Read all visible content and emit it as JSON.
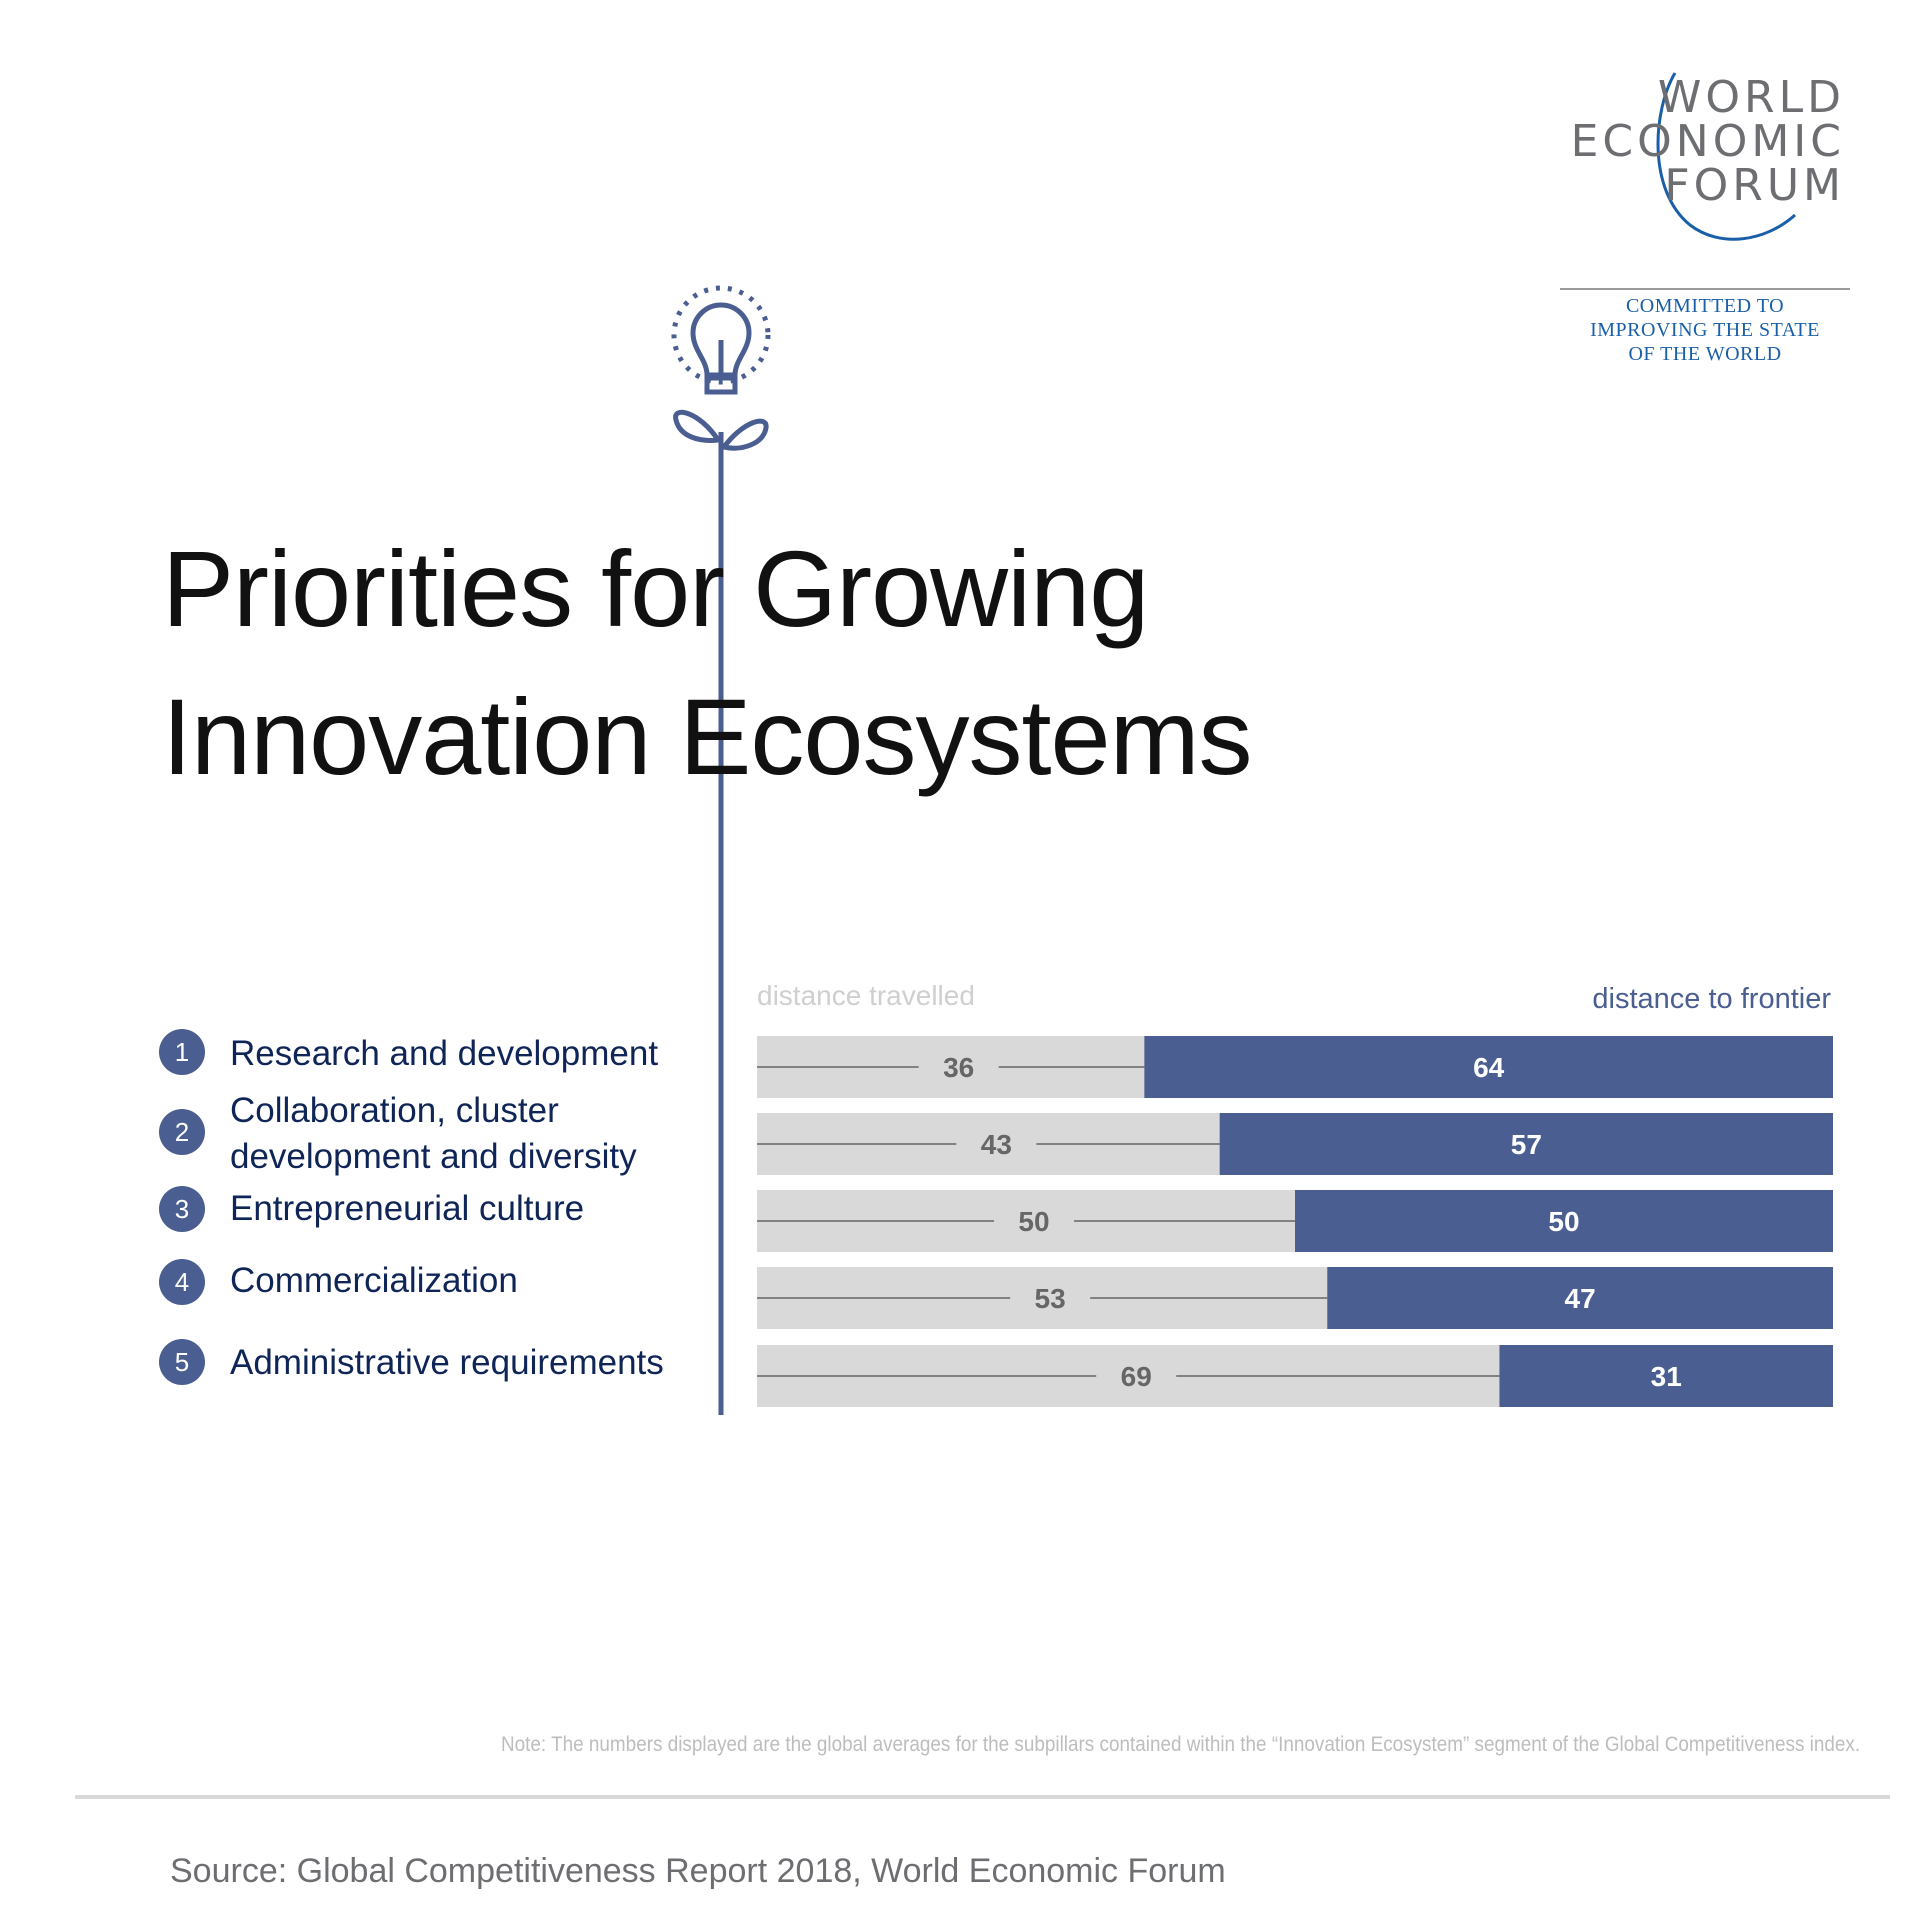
{
  "logo": {
    "lines": [
      "WORLD",
      "ECONOMIC",
      "FORUM"
    ],
    "tagline": [
      "COMMITTED TO",
      "IMPROVING THE STATE",
      "OF THE WORLD"
    ]
  },
  "title": [
    "Priorities for Growing",
    "Innovation Ecosystems"
  ],
  "legend": {
    "left": "distance travelled",
    "right": "distance to frontier"
  },
  "chart_data": {
    "type": "bar",
    "stacked": true,
    "orientation": "horizontal",
    "categories": [
      "Research and development",
      "Collaboration, cluster development and diversity",
      "Entrepreneurial culture",
      "Commercialization",
      "Administrative requirements"
    ],
    "category_numbers": [
      "1",
      "2",
      "3",
      "4",
      "5"
    ],
    "series": [
      {
        "name": "distance travelled",
        "values": [
          36,
          43,
          50,
          53,
          69
        ]
      },
      {
        "name": "distance to frontier",
        "values": [
          64,
          57,
          50,
          47,
          31
        ]
      }
    ],
    "xlim": [
      0,
      100
    ],
    "legend_position": "top"
  },
  "colors": {
    "travelled": "#d9d9d9",
    "frontier": "#4a5e91",
    "label_navy": "#0f2557",
    "legend_grey": "#cfcfcf",
    "legend_blue": "#4a5e91",
    "stem": "#4a5e91"
  },
  "note": "Note: The numbers displayed are the global averages for the subpillars contained within the “Innovation Ecosystem” segment of the Global Competitiveness index.",
  "source": "Source: Global Competitiveness Report 2018, World Economic Forum"
}
